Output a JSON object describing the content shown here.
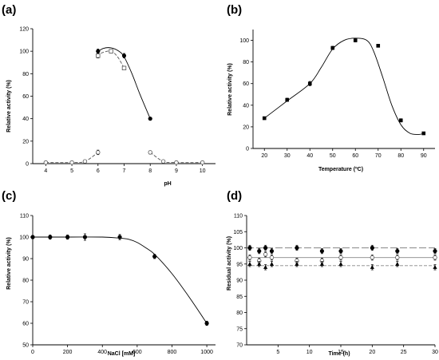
{
  "chart_data": [
    {
      "panel": "(a)",
      "type": "scatter",
      "xlabel": "pH",
      "ylabel": "Relative activity (%)",
      "xlim": [
        3.5,
        10.5
      ],
      "ylim": [
        0,
        120
      ],
      "xticks": [
        4,
        5,
        6,
        7,
        8,
        9,
        10
      ],
      "yticks": [
        0,
        20,
        40,
        60,
        80,
        100,
        120
      ],
      "series": [
        {
          "marker": "filled-circle",
          "line": "solid",
          "color": "#000000",
          "x": [
            6,
            7,
            8
          ],
          "y": [
            100,
            96,
            40
          ],
          "err": [
            2,
            2,
            1
          ],
          "fit_x": [
            5.95,
            6.2,
            6.5,
            6.8,
            7.0,
            7.3,
            7.6,
            8.0
          ],
          "fit_y": [
            99,
            102.5,
            103,
            100,
            95,
            80,
            62,
            40
          ]
        },
        {
          "marker": "open-square",
          "line": "dashed",
          "color": "#555555",
          "x": [
            6,
            6.5,
            7
          ],
          "y": [
            96,
            100,
            85
          ],
          "err": [
            2,
            1.5,
            1.5
          ],
          "fit_x": [
            5.95,
            6.2,
            6.5,
            6.75,
            7.0
          ],
          "fit_y": [
            96,
            99,
            100,
            95,
            85
          ]
        },
        {
          "marker": "open-circle",
          "line": "dashed",
          "color": "#555555",
          "x": [
            4,
            5,
            5.5,
            6,
            8,
            8.5,
            9,
            10
          ],
          "y": [
            1,
            1,
            2,
            10,
            10,
            2,
            1,
            1
          ],
          "err": [
            0.5,
            0.5,
            0.5,
            2,
            1.5,
            0.5,
            0.5,
            0.5
          ],
          "fit_x": [
            4,
            5,
            5.5,
            6
          ],
          "fit_y": [
            1,
            1,
            2,
            10
          ],
          "fit2_x": [
            8,
            8.5,
            9,
            10
          ],
          "fit2_y": [
            10,
            2,
            1,
            1
          ]
        }
      ]
    },
    {
      "panel": "(b)",
      "type": "scatter",
      "xlabel": "Temperature (ºC)",
      "ylabel": "Relative activity (%)",
      "xlim": [
        15,
        95
      ],
      "ylim": [
        0,
        110
      ],
      "xticks": [
        20,
        30,
        40,
        50,
        60,
        70,
        80,
        90
      ],
      "yticks": [
        0,
        20,
        40,
        60,
        80,
        100
      ],
      "series": [
        {
          "marker": "filled-square",
          "line": "solid",
          "color": "#000000",
          "x": [
            20,
            30,
            40,
            50,
            60,
            70,
            80,
            90
          ],
          "y": [
            28,
            45,
            60,
            93,
            100,
            95,
            26,
            14
          ],
          "err": [
            1,
            1.5,
            2,
            1.5,
            1.5,
            1,
            1.5,
            1
          ],
          "fit_x": [
            20,
            30,
            40,
            45,
            50,
            55,
            60,
            65,
            68,
            72,
            76,
            80,
            84,
            88,
            90
          ],
          "fit_y": [
            28,
            44,
            60,
            75,
            92,
            100,
            102,
            100,
            90,
            66,
            40,
            22,
            14,
            13,
            14
          ]
        }
      ]
    },
    {
      "panel": "(c)",
      "type": "scatter",
      "xlabel": "NaCl [mM]",
      "ylabel": "Relative activity (%)",
      "xlim": [
        0,
        1050
      ],
      "ylim": [
        50,
        110
      ],
      "xticks": [
        0,
        200,
        400,
        600,
        800,
        1000
      ],
      "yticks": [
        50,
        60,
        70,
        80,
        90,
        100,
        110
      ],
      "series": [
        {
          "marker": "filled-circle",
          "line": "solid",
          "color": "#000000",
          "x": [
            0,
            100,
            200,
            300,
            500,
            700,
            1000
          ],
          "y": [
            100,
            100,
            100,
            100,
            100,
            91,
            60
          ],
          "err": [
            0.8,
            1,
            1,
            1.5,
            1.2,
            1,
            1
          ],
          "fit_x": [
            0,
            200,
            400,
            500,
            550,
            600,
            650,
            700,
            800,
            900,
            1000
          ],
          "fit_y": [
            100,
            100,
            100,
            99.5,
            99,
            97.5,
            95,
            92,
            83,
            72,
            60
          ]
        }
      ]
    },
    {
      "panel": "(d)",
      "type": "scatter",
      "xlabel": "Time (h)",
      "ylabel": "Residual activity (%)",
      "xlim": [
        0,
        30
      ],
      "ylim": [
        70,
        110
      ],
      "xticks": [
        5,
        10,
        15,
        20,
        25,
        30
      ],
      "yticks": [
        70,
        75,
        80,
        85,
        90,
        95,
        100,
        105,
        110
      ],
      "series": [
        {
          "marker": "filled-circle",
          "line": "long-dash",
          "color": "#888888",
          "x": [
            0.5,
            2,
            3,
            4,
            8,
            12,
            15,
            20,
            24,
            30
          ],
          "y": [
            100,
            99,
            100,
            99,
            100,
            99,
            99,
            100,
            99,
            99
          ],
          "err": [
            0.8,
            0.8,
            0.8,
            0.8,
            0.8,
            0.8,
            0.8,
            0.8,
            0.8,
            0.8
          ],
          "level": 100
        },
        {
          "marker": "open-circle",
          "line": "solid",
          "color": "#888888",
          "x": [
            0.5,
            2,
            3,
            4,
            8,
            12,
            15,
            20,
            24,
            30
          ],
          "y": [
            97,
            96,
            98,
            97,
            96,
            96,
            97,
            97,
            97,
            97
          ],
          "err": [
            0.8,
            0.8,
            0.8,
            0.8,
            0.8,
            0.8,
            0.8,
            0.8,
            0.8,
            0.8
          ],
          "level": 97
        },
        {
          "marker": "filled-triangle",
          "line": "dashed",
          "color": "#888888",
          "x": [
            0.5,
            2,
            3,
            4,
            8,
            12,
            15,
            20,
            24,
            30
          ],
          "y": [
            95,
            95,
            94,
            95,
            95,
            95,
            95,
            94,
            95,
            94
          ],
          "err": [
            0.8,
            0.8,
            0.8,
            0.8,
            0.8,
            0.8,
            0.8,
            0.8,
            0.8,
            0.8
          ],
          "level": 94.5
        }
      ]
    }
  ]
}
